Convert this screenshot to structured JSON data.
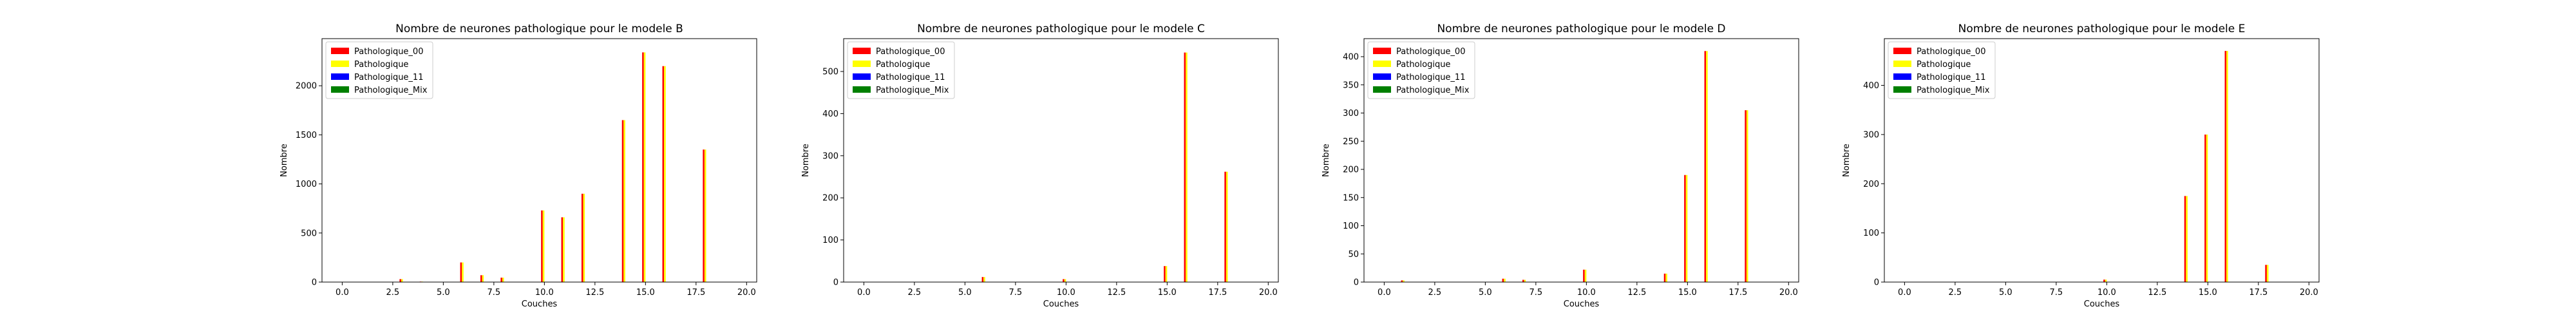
{
  "legend": {
    "entries": [
      {
        "name": "Pathologique_00",
        "color": "#ff0000"
      },
      {
        "name": "Pathologique",
        "color": "#ffff00"
      },
      {
        "name": "Pathologique_11",
        "color": "#0000ff"
      },
      {
        "name": "Pathologique_Mix",
        "color": "#008000"
      }
    ],
    "placement": "upper-left"
  },
  "chart_data": [
    {
      "type": "bar",
      "title": "Nombre de neurones pathologique pour le modele B",
      "xlabel": "Couches",
      "ylabel": "Nombre",
      "xlim": [
        -1,
        20.5
      ],
      "ylim": [
        0,
        2480
      ],
      "xticks": [
        0.0,
        2.5,
        5.0,
        7.5,
        10.0,
        12.5,
        15.0,
        17.5,
        20.0
      ],
      "xtick_labels": [
        "0.0",
        "2.5",
        "5.0",
        "7.5",
        "10.0",
        "12.5",
        "15.0",
        "17.5",
        "20.0"
      ],
      "yticks": [
        0,
        500,
        1000,
        1500,
        2000
      ],
      "ytick_labels": [
        "0",
        "500",
        "1000",
        "1500",
        "2000"
      ],
      "x": [
        0,
        1,
        2,
        3,
        4,
        5,
        6,
        7,
        8,
        9,
        10,
        11,
        12,
        13,
        14,
        15,
        16,
        17,
        18
      ],
      "series": [
        {
          "name": "Pathologique_00",
          "values": [
            0,
            0,
            0,
            30,
            5,
            0,
            200,
            70,
            45,
            0,
            730,
            660,
            900,
            0,
            1650,
            2340,
            2200,
            0,
            1350
          ]
        },
        {
          "name": "Pathologique",
          "values": [
            0,
            0,
            0,
            30,
            5,
            0,
            200,
            70,
            45,
            0,
            730,
            660,
            900,
            0,
            1650,
            2340,
            2200,
            0,
            1350
          ]
        },
        {
          "name": "Pathologique_11",
          "values": [
            0,
            0,
            0,
            0,
            0,
            0,
            0,
            0,
            0,
            0,
            0,
            0,
            0,
            0,
            0,
            0,
            0,
            0,
            0
          ]
        },
        {
          "name": "Pathologique_Mix",
          "values": [
            0,
            0,
            0,
            0,
            0,
            0,
            0,
            0,
            0,
            0,
            0,
            0,
            0,
            0,
            0,
            0,
            0,
            0,
            0
          ]
        }
      ]
    },
    {
      "type": "bar",
      "title": "Nombre de neurones pathologique pour le modele C",
      "xlabel": "Couches",
      "ylabel": "Nombre",
      "xlim": [
        -1,
        20.5
      ],
      "ylim": [
        0,
        578
      ],
      "xticks": [
        0.0,
        2.5,
        5.0,
        7.5,
        10.0,
        12.5,
        15.0,
        17.5,
        20.0
      ],
      "xtick_labels": [
        "0.0",
        "2.5",
        "5.0",
        "7.5",
        "10.0",
        "12.5",
        "15.0",
        "17.5",
        "20.0"
      ],
      "yticks": [
        0,
        100,
        200,
        300,
        400,
        500
      ],
      "ytick_labels": [
        "0",
        "100",
        "200",
        "300",
        "400",
        "500"
      ],
      "x": [
        0,
        1,
        2,
        3,
        4,
        5,
        6,
        7,
        8,
        9,
        10,
        11,
        12,
        13,
        14,
        15,
        16,
        17,
        18
      ],
      "series": [
        {
          "name": "Pathologique_00",
          "values": [
            0,
            0,
            0,
            0,
            0,
            0,
            12,
            0,
            0,
            0,
            7,
            0,
            0,
            0,
            0,
            38,
            545,
            0,
            262
          ]
        },
        {
          "name": "Pathologique",
          "values": [
            0,
            0,
            0,
            0,
            0,
            0,
            12,
            0,
            0,
            0,
            7,
            0,
            0,
            0,
            0,
            38,
            545,
            0,
            262
          ]
        },
        {
          "name": "Pathologique_11",
          "values": [
            0,
            0,
            0,
            0,
            0,
            0,
            0,
            0,
            0,
            0,
            0,
            0,
            0,
            0,
            0,
            0,
            0,
            0,
            0
          ]
        },
        {
          "name": "Pathologique_Mix",
          "values": [
            0,
            0,
            0,
            0,
            0,
            0,
            0,
            0,
            0,
            0,
            0,
            0,
            0,
            0,
            0,
            0,
            0,
            0,
            0
          ]
        }
      ]
    },
    {
      "type": "bar",
      "title": "Nombre de neurones pathologique pour le modele D",
      "xlabel": "Couches",
      "ylabel": "Nombre",
      "xlim": [
        -1,
        20.5
      ],
      "ylim": [
        0,
        432
      ],
      "xticks": [
        0.0,
        2.5,
        5.0,
        7.5,
        10.0,
        12.5,
        15.0,
        17.5,
        20.0
      ],
      "xtick_labels": [
        "0.0",
        "2.5",
        "5.0",
        "7.5",
        "10.0",
        "12.5",
        "15.0",
        "17.5",
        "20.0"
      ],
      "yticks": [
        0,
        50,
        100,
        150,
        200,
        250,
        300,
        350,
        400
      ],
      "ytick_labels": [
        "0",
        "50",
        "100",
        "150",
        "200",
        "250",
        "300",
        "350",
        "400"
      ],
      "x": [
        0,
        1,
        2,
        3,
        4,
        5,
        6,
        7,
        8,
        9,
        10,
        11,
        12,
        13,
        14,
        15,
        16,
        17,
        18
      ],
      "series": [
        {
          "name": "Pathologique_00",
          "values": [
            0,
            3,
            0,
            0,
            0,
            0,
            6,
            4,
            0,
            0,
            22,
            0,
            0,
            0,
            15,
            190,
            410,
            0,
            305
          ]
        },
        {
          "name": "Pathologique",
          "values": [
            0,
            3,
            0,
            0,
            0,
            0,
            6,
            4,
            0,
            0,
            22,
            0,
            0,
            0,
            15,
            190,
            410,
            0,
            305
          ]
        },
        {
          "name": "Pathologique_11",
          "values": [
            0,
            0,
            0,
            0,
            0,
            0,
            0,
            0,
            0,
            0,
            0,
            0,
            0,
            0,
            0,
            0,
            0,
            0,
            0
          ]
        },
        {
          "name": "Pathologique_Mix",
          "values": [
            0,
            0,
            0,
            0,
            0,
            0,
            0,
            0,
            0,
            0,
            0,
            0,
            0,
            0,
            0,
            0,
            0,
            0,
            0
          ]
        }
      ]
    },
    {
      "type": "bar",
      "title": "Nombre de neurones pathologique pour le modele E",
      "xlabel": "Couches",
      "ylabel": "Nombre",
      "xlim": [
        -1,
        20.5
      ],
      "ylim": [
        0,
        495
      ],
      "xticks": [
        0.0,
        2.5,
        5.0,
        7.5,
        10.0,
        12.5,
        15.0,
        17.5,
        20.0
      ],
      "xtick_labels": [
        "0.0",
        "2.5",
        "5.0",
        "7.5",
        "10.0",
        "12.5",
        "15.0",
        "17.5",
        "20.0"
      ],
      "yticks": [
        0,
        100,
        200,
        300,
        400
      ],
      "ytick_labels": [
        "0",
        "100",
        "200",
        "300",
        "400"
      ],
      "x": [
        0,
        1,
        2,
        3,
        4,
        5,
        6,
        7,
        8,
        9,
        10,
        11,
        12,
        13,
        14,
        15,
        16,
        17,
        18
      ],
      "series": [
        {
          "name": "Pathologique_00",
          "values": [
            0,
            0,
            0,
            0,
            0,
            0,
            0,
            0,
            0,
            0,
            5,
            0,
            0,
            0,
            175,
            300,
            470,
            0,
            35
          ]
        },
        {
          "name": "Pathologique",
          "values": [
            0,
            0,
            0,
            0,
            0,
            0,
            0,
            0,
            0,
            0,
            5,
            0,
            0,
            0,
            175,
            300,
            470,
            0,
            35
          ]
        },
        {
          "name": "Pathologique_11",
          "values": [
            0,
            0,
            0,
            0,
            0,
            0,
            0,
            0,
            0,
            0,
            0,
            0,
            0,
            0,
            0,
            0,
            0,
            0,
            0
          ]
        },
        {
          "name": "Pathologique_Mix",
          "values": [
            0,
            0,
            0,
            0,
            0,
            0,
            0,
            0,
            0,
            0,
            0,
            0,
            0,
            0,
            0,
            0,
            0,
            0,
            0
          ]
        }
      ]
    }
  ]
}
